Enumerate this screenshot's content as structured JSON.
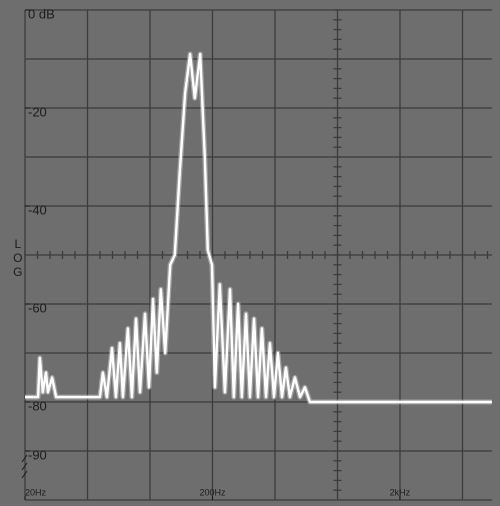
{
  "chart_data": {
    "type": "line",
    "y_label": "LOG",
    "log_x": true,
    "color": "#ffffff",
    "xlim": [
      20,
      6200
    ],
    "ylim": [
      -100,
      0
    ],
    "xticks": [
      {
        "value": 20,
        "label": "20Hz"
      },
      {
        "value": 200,
        "label": "200Hz"
      },
      {
        "value": 2000,
        "label": "2kHz"
      }
    ],
    "yticks": [
      {
        "value": 0,
        "label": "0 dB"
      },
      -20,
      -40,
      -60,
      -80,
      -90
    ],
    "x": [
      20,
      23.5,
      24,
      24.9,
      25.9,
      26.5,
      27.9,
      29.3,
      50.2,
      52.1,
      54.7,
      58.2,
      61.1,
      64.2,
      66.6,
      70.8,
      74.4,
      78.2,
      82.1,
      87.3,
      91.7,
      96.3,
      101,
      106,
      112,
      119,
      126,
      134,
      143,
      152,
      161,
      172,
      182,
      189,
      199,
      206,
      219,
      233,
      248,
      260,
      274,
      287,
      302,
      317,
      333,
      350,
      367,
      386,
      405,
      426,
      447,
      470,
      493,
      518,
      551,
      586,
      623,
      662,
      6190
    ],
    "values": [
      -79,
      -79,
      -71,
      -78,
      -74,
      -78,
      -75,
      -79,
      -79,
      -74,
      -79,
      -69,
      -79,
      -68,
      -79,
      -65,
      -79,
      -63,
      -78,
      -62,
      -77,
      -59,
      -74,
      -57,
      -70,
      -52,
      -50,
      -33,
      -17,
      -9,
      -18,
      -9,
      -30,
      -49,
      -52,
      -77,
      -56,
      -78,
      -57,
      -79,
      -60,
      -79,
      -62,
      -79,
      -63,
      -79,
      -65,
      -79,
      -68,
      -79,
      -70,
      -79,
      -73,
      -79,
      -75,
      -79,
      -77,
      -80,
      -80
    ]
  }
}
